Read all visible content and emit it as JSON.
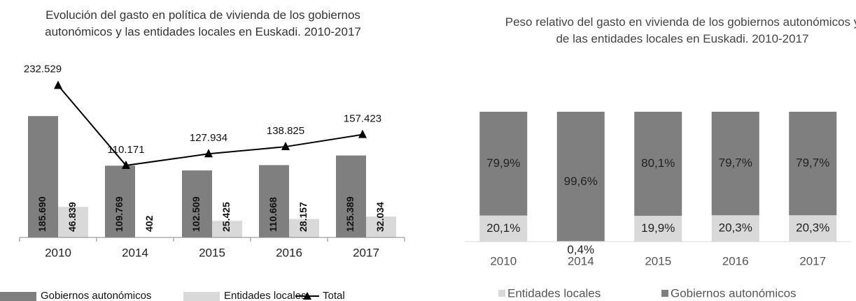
{
  "chart_data": [
    {
      "type": "bar",
      "title": "Evolución del gasto en política de vivienda de los gobiernos autonómicos y las entidades locales en Euskadi. 2010-2017",
      "categories": [
        "2010",
        "2014",
        "2015",
        "2016",
        "2017"
      ],
      "ylim": [
        0,
        250000
      ],
      "series": [
        {
          "name": "Gobiernos autonómicos",
          "color": "#7f7f7f",
          "values": [
            185690,
            109769,
            102509,
            110668,
            125389
          ],
          "value_labels": [
            "185.690",
            "109.769",
            "102.509",
            "110.668",
            "125.389"
          ]
        },
        {
          "name": "Entidades locales",
          "color": "#d9d9d9",
          "values": [
            46839,
            402,
            25425,
            28157,
            32034
          ],
          "value_labels": [
            "46.839",
            "402",
            "25.425",
            "28.157",
            "32.034"
          ]
        },
        {
          "name": "Total",
          "type": "line",
          "color": "#000000",
          "values": [
            232529,
            110171,
            127934,
            138825,
            157423
          ],
          "value_labels": [
            "232.529",
            "110.171",
            "127.934",
            "138.825",
            "157.423"
          ]
        }
      ]
    },
    {
      "type": "stacked_bar",
      "title": "Peso relativo del gasto en vivienda de los gobiernos autonómicos y de las entidades locales en Euskadi. 2010-2017",
      "categories": [
        "2010",
        "2014",
        "2015",
        "2016",
        "2017"
      ],
      "ylim": [
        0,
        100
      ],
      "series": [
        {
          "name": "Entidades locales",
          "color": "#d9d9d9",
          "values": [
            20.1,
            0.4,
            19.9,
            20.3,
            20.3
          ],
          "value_labels": [
            "20,1%",
            "0,4%",
            "19,9%",
            "20,3%",
            "20,3%"
          ]
        },
        {
          "name": "Gobiernos autonómicos",
          "color": "#7f7f7f",
          "values": [
            79.9,
            99.6,
            80.1,
            79.7,
            79.7
          ],
          "value_labels": [
            "79,9%",
            "99,6%",
            "80,1%",
            "79,7%",
            "79,7%"
          ]
        }
      ]
    }
  ]
}
